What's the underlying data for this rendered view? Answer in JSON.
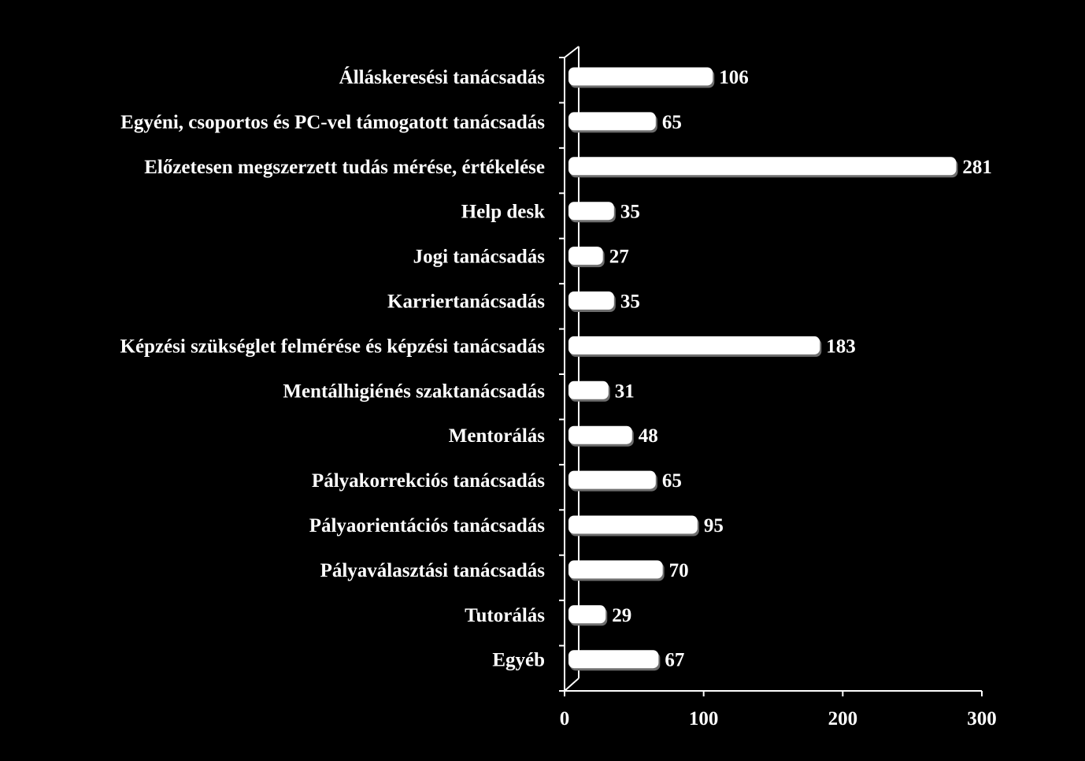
{
  "chart_data": {
    "type": "bar",
    "orientation": "horizontal",
    "categories": [
      "Álláskeresési tanácsadás",
      "Egyéni, csoportos és PC-vel támogatott tanácsadás",
      "Előzetesen megszerzett tudás mérése, értékelése",
      "Help desk",
      "Jogi tanácsadás",
      "Karriertanácsadás",
      "Képzési szükséglet felmérése és képzési tanácsadás",
      "Mentálhigiénés szaktanácsadás",
      "Mentorálás",
      "Pályakorrekciós tanácsadás",
      "Pályaorientációs tanácsadás",
      "Pályaválasztási tanácsadás",
      "Tutorálás",
      "Egyéb"
    ],
    "values": [
      106,
      65,
      281,
      35,
      27,
      35,
      183,
      31,
      48,
      65,
      95,
      70,
      29,
      67
    ],
    "data_labels": [
      "106",
      "65",
      "281",
      "35",
      "27",
      "35",
      "183",
      "31",
      "48",
      "65",
      "95",
      "70",
      "29",
      "67"
    ],
    "x_ticks": [
      "0",
      "100",
      "200",
      "300"
    ],
    "xlim": [
      0,
      300
    ],
    "title": "",
    "xlabel": "",
    "ylabel": "",
    "grid": false,
    "legend": "none",
    "colors": {
      "background": "#000000",
      "bar": "#ffffff",
      "bar_shadow": "#6e6e6e",
      "axis": "#ffffff",
      "text": "#ffffff"
    }
  }
}
